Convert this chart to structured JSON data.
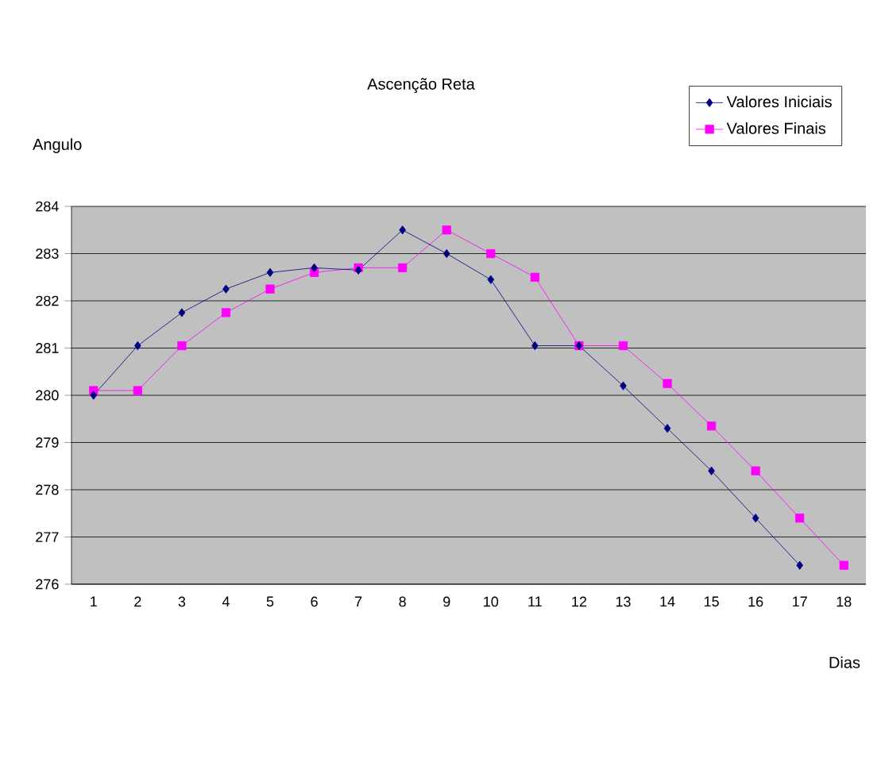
{
  "chart_data": {
    "type": "line",
    "title": "Ascenção Reta",
    "xlabel": "Dias",
    "ylabel": "Angulo",
    "categories": [
      "1",
      "2",
      "3",
      "4",
      "5",
      "6",
      "7",
      "8",
      "9",
      "10",
      "11",
      "12",
      "13",
      "14",
      "15",
      "16",
      "17",
      "18"
    ],
    "series": [
      {
        "name": "Valores Iniciais",
        "color": "#000080",
        "marker": "diamond",
        "values": [
          280.0,
          281.05,
          281.75,
          282.25,
          282.6,
          282.7,
          282.65,
          283.5,
          283.0,
          282.45,
          281.05,
          281.05,
          280.2,
          279.3,
          278.4,
          277.4,
          276.4,
          null
        ]
      },
      {
        "name": "Valores Finais",
        "color": "#ff00ff",
        "marker": "square",
        "values": [
          280.1,
          280.1,
          281.05,
          281.75,
          282.25,
          282.6,
          282.7,
          282.7,
          283.5,
          283.0,
          282.5,
          281.05,
          281.05,
          280.25,
          279.35,
          278.4,
          277.4,
          276.4
        ]
      }
    ],
    "ylim": [
      276,
      284
    ],
    "yticks": [
      276,
      277,
      278,
      279,
      280,
      281,
      282,
      283,
      284
    ],
    "grid": "y",
    "legend": "top right",
    "line_style": "solid"
  }
}
